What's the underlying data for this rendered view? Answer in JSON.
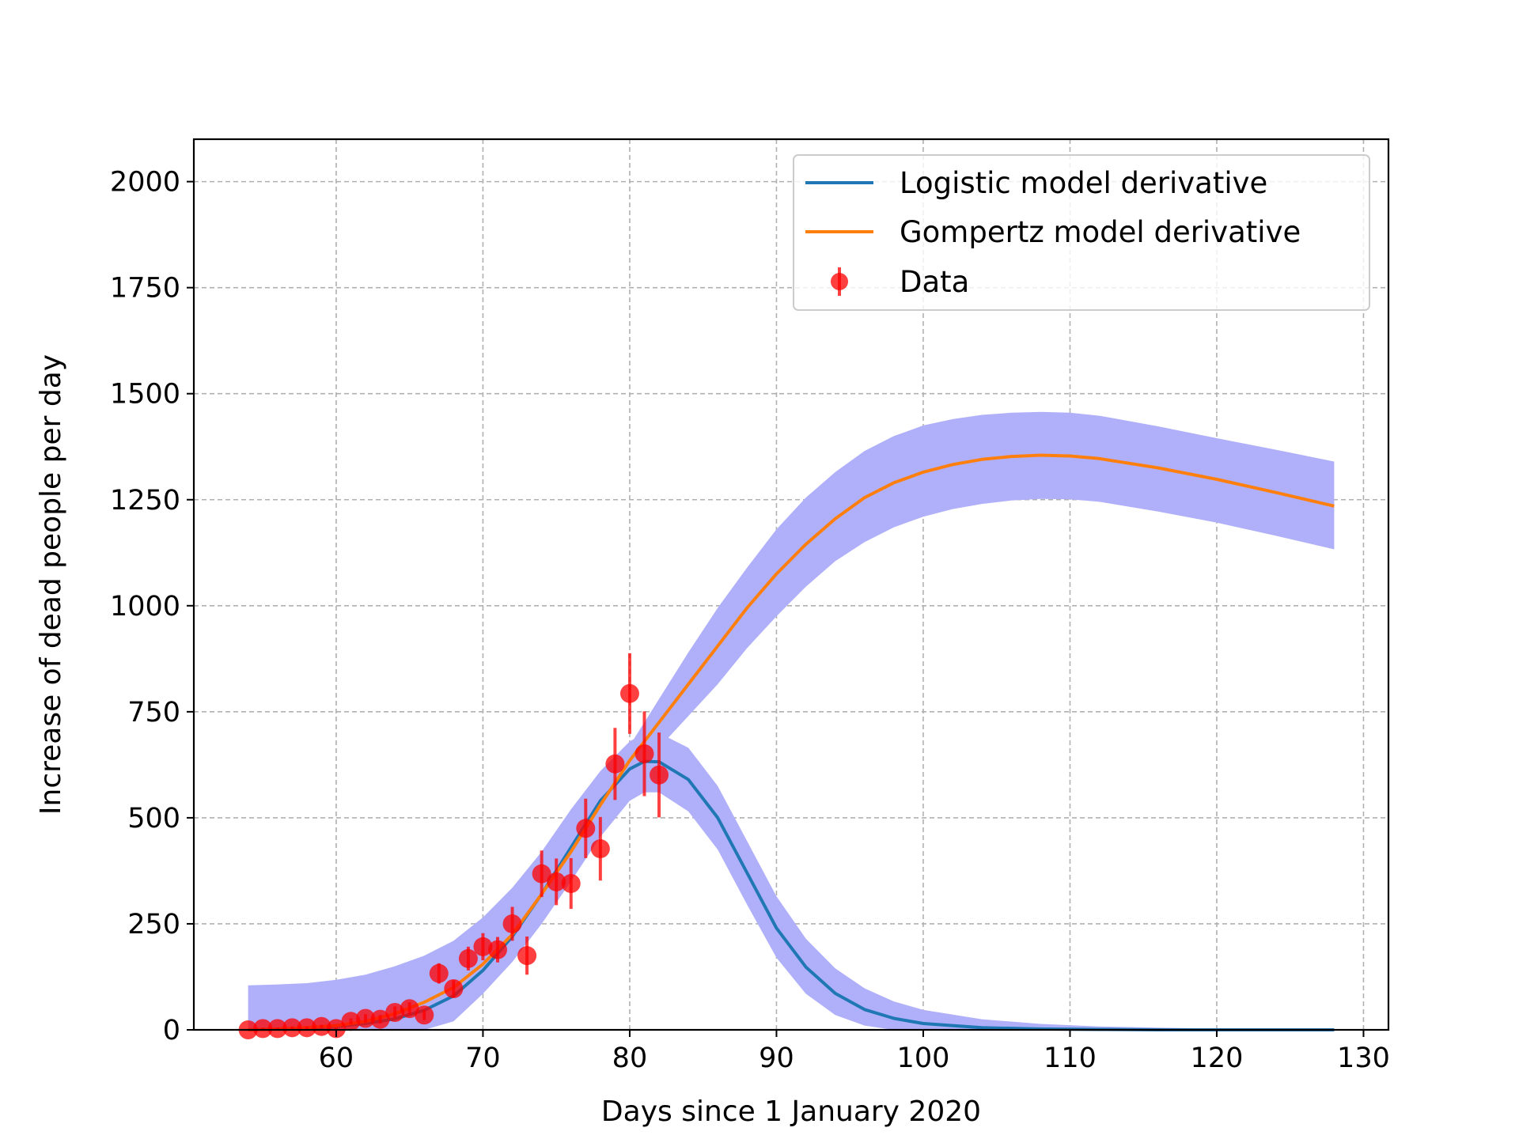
{
  "chart_data": {
    "type": "line",
    "xlabel": "Days since 1 January 2020",
    "ylabel": "Increase of dead people per day",
    "xlim": [
      50.3,
      131.7
    ],
    "ylim": [
      0,
      2100
    ],
    "xticks": [
      60,
      70,
      80,
      90,
      100,
      110,
      120,
      130
    ],
    "yticks": [
      0,
      250,
      500,
      750,
      1000,
      1250,
      1500,
      1750,
      2000
    ],
    "grid": true,
    "legend_position": "top-right",
    "series": [
      {
        "name": "Logistic model derivative",
        "kind": "line",
        "color": "#1f77b4",
        "x": [
          54,
          56,
          58,
          60,
          62,
          64,
          66,
          68,
          70,
          72,
          74,
          76,
          78,
          80,
          81,
          82,
          84,
          86,
          88,
          90,
          92,
          94,
          96,
          98,
          100,
          104,
          108,
          112,
          116,
          120,
          124,
          128
        ],
        "y": [
          0,
          2,
          4,
          8,
          15,
          26,
          46,
          80,
          140,
          220,
          320,
          430,
          540,
          615,
          633,
          632,
          590,
          500,
          370,
          240,
          148,
          86,
          48,
          27,
          15,
          5,
          2,
          1,
          0,
          0,
          0,
          0
        ]
      },
      {
        "name": "Gompertz model derivative",
        "kind": "line",
        "color": "#ff7f0e",
        "x": [
          54,
          56,
          58,
          60,
          62,
          64,
          66,
          68,
          70,
          72,
          74,
          76,
          78,
          80,
          82,
          84,
          86,
          88,
          90,
          92,
          94,
          96,
          98,
          100,
          102,
          104,
          106,
          108,
          110,
          112,
          116,
          120,
          124,
          128
        ],
        "y": [
          0,
          2,
          5,
          10,
          20,
          38,
          65,
          100,
          155,
          225,
          320,
          420,
          530,
          635,
          725,
          815,
          905,
          995,
          1075,
          1145,
          1205,
          1255,
          1290,
          1315,
          1333,
          1345,
          1352,
          1355,
          1353,
          1347,
          1325,
          1298,
          1267,
          1235
        ]
      },
      {
        "name": "Data",
        "kind": "errorbar",
        "color": "#ff0000",
        "x": [
          54,
          55,
          56,
          57,
          58,
          59,
          60,
          61,
          62,
          63,
          64,
          65,
          66,
          67,
          68,
          69,
          70,
          71,
          72,
          73,
          74,
          75,
          76,
          77,
          78,
          79,
          80,
          81,
          82
        ],
        "y": [
          0,
          3,
          3,
          5,
          5,
          8,
          3,
          20,
          27,
          25,
          41,
          50,
          35,
          133,
          97,
          168,
          196,
          189,
          250,
          175,
          368,
          349,
          345,
          475,
          427,
          627,
          793,
          651,
          601
        ],
        "yerr": [
          0,
          2,
          2,
          3,
          3,
          4,
          2,
          7,
          10,
          10,
          14,
          15,
          12,
          24,
          20,
          28,
          32,
          30,
          40,
          45,
          55,
          55,
          60,
          70,
          75,
          85,
          95,
          100,
          100
        ]
      }
    ],
    "bands": [
      {
        "color": "#b0b0fa",
        "x": [
          54,
          56,
          58,
          60,
          62,
          64,
          66,
          68,
          70,
          72,
          74,
          76,
          78,
          80,
          81,
          82,
          84,
          86,
          88,
          90,
          92,
          94,
          96,
          98,
          100,
          104,
          108,
          112,
          116,
          120,
          124,
          128
        ],
        "upper": [
          105,
          107,
          110,
          118,
          130,
          150,
          175,
          210,
          265,
          335,
          420,
          520,
          610,
          680,
          700,
          700,
          665,
          575,
          445,
          315,
          215,
          145,
          98,
          67,
          47,
          25,
          14,
          8,
          5,
          3,
          2,
          1
        ],
        "lower": [
          0,
          0,
          0,
          0,
          0,
          0,
          0,
          20,
          85,
          160,
          250,
          350,
          455,
          540,
          560,
          560,
          515,
          425,
          295,
          170,
          85,
          35,
          10,
          0,
          0,
          0,
          0,
          0,
          0,
          0,
          0,
          0
        ]
      },
      {
        "color": "#b0b0fa",
        "x": [
          54,
          56,
          58,
          60,
          62,
          64,
          66,
          68,
          70,
          72,
          74,
          76,
          78,
          80,
          82,
          84,
          86,
          88,
          90,
          92,
          94,
          96,
          98,
          100,
          102,
          104,
          106,
          108,
          110,
          112,
          116,
          120,
          124,
          128
        ],
        "upper": [
          0,
          2,
          5,
          10,
          20,
          38,
          75,
          125,
          185,
          255,
          345,
          450,
          560,
          670,
          780,
          890,
          995,
          1090,
          1180,
          1255,
          1315,
          1365,
          1400,
          1425,
          1440,
          1450,
          1455,
          1457,
          1455,
          1448,
          1423,
          1395,
          1368,
          1340
        ],
        "lower": [
          0,
          0,
          0,
          0,
          0,
          0,
          0,
          75,
          125,
          195,
          295,
          395,
          505,
          600,
          665,
          740,
          815,
          900,
          975,
          1045,
          1105,
          1150,
          1185,
          1210,
          1228,
          1240,
          1248,
          1252,
          1251,
          1245,
          1222,
          1196,
          1165,
          1133
        ]
      }
    ]
  }
}
